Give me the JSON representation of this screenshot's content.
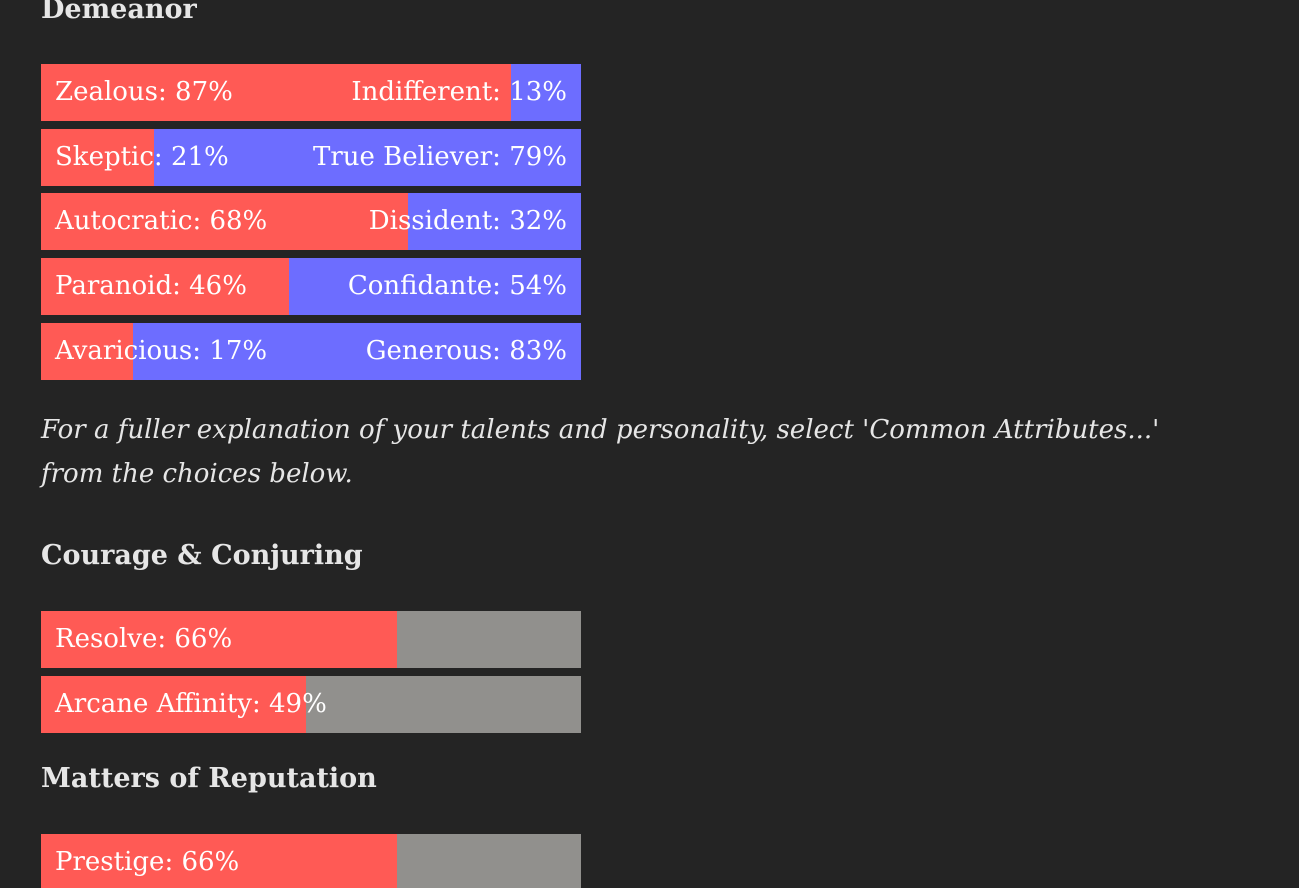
{
  "colors": {
    "background": "#242424",
    "left_trait": "#ff5a55",
    "right_trait": "#6d6dff",
    "empty": "#91908d",
    "text": "#e6e6e6"
  },
  "sections": {
    "demeanor": {
      "title": "Demeanor",
      "bars": [
        {
          "left_label": "Zealous: 87%",
          "right_label": "Indifferent: 13%",
          "left_fraction": 0.87
        },
        {
          "left_label": "Skeptic: 21%",
          "right_label": "True Believer: 79%",
          "left_fraction": 0.21
        },
        {
          "left_label": "Autocratic: 68%",
          "right_label": "Dissident: 32%",
          "left_fraction": 0.68
        },
        {
          "left_label": "Paranoid: 46%",
          "right_label": "Confidante: 54%",
          "left_fraction": 0.46
        },
        {
          "left_label": "Avaricious: 17%",
          "right_label": "Generous: 83%",
          "left_fraction": 0.17
        }
      ]
    },
    "note": "For a fuller explanation of your talents and personality, select 'Common Attributes...' from the choices below.",
    "courage": {
      "title": "Courage & Conjuring",
      "bars": [
        {
          "label": "Resolve: 66%",
          "fraction": 0.66
        },
        {
          "label": "Arcane Affinity: 49%",
          "fraction": 0.49
        }
      ]
    },
    "reputation": {
      "title": "Matters of Reputation",
      "bars": [
        {
          "label": "Prestige: 66%",
          "fraction": 0.66
        }
      ]
    }
  }
}
